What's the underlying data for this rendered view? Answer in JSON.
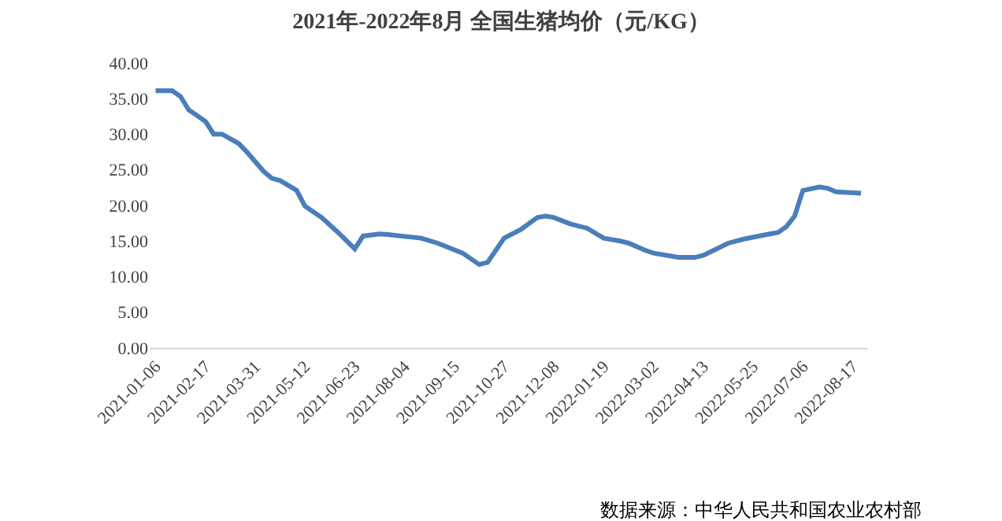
{
  "chart_data": {
    "type": "line",
    "title": "2021年-2022年8月 全国生猪均价（元/KG）",
    "annotations": [
      "数据来源：中华人民共和国农业农村部"
    ],
    "x": [
      "2021-01-06",
      "2021-01-20",
      "2021-01-27",
      "2021-02-03",
      "2021-02-17",
      "2021-02-24",
      "2021-03-03",
      "2021-03-17",
      "2021-03-24",
      "2021-04-07",
      "2021-04-14",
      "2021-04-21",
      "2021-05-05",
      "2021-05-12",
      "2021-05-26",
      "2021-06-09",
      "2021-06-23",
      "2021-06-30",
      "2021-07-14",
      "2021-07-21",
      "2021-08-18",
      "2021-09-01",
      "2021-09-22",
      "2021-10-06",
      "2021-10-13",
      "2021-10-27",
      "2021-11-10",
      "2021-11-24",
      "2021-12-01",
      "2021-12-08",
      "2021-12-22",
      "2022-01-05",
      "2022-01-19",
      "2022-02-02",
      "2022-02-09",
      "2022-02-23",
      "2022-03-02",
      "2022-03-23",
      "2022-04-06",
      "2022-04-13",
      "2022-05-04",
      "2022-05-18",
      "2022-06-08",
      "2022-06-15",
      "2022-06-22",
      "2022-06-29",
      "2022-07-06",
      "2022-07-20",
      "2022-07-27",
      "2022-08-03",
      "2022-08-24"
    ],
    "series": [
      {
        "color": "#4a7ebb",
        "values": [
          36.1,
          36.1,
          35.3,
          33.4,
          31.8,
          30.0,
          30.0,
          28.7,
          27.5,
          24.8,
          23.8,
          23.5,
          22.1,
          19.9,
          18.3,
          16.2,
          13.9,
          15.7,
          16.0,
          15.9,
          15.4,
          14.7,
          13.3,
          11.7,
          12.0,
          15.4,
          16.6,
          18.3,
          18.5,
          18.3,
          17.4,
          16.8,
          15.4,
          15.0,
          14.7,
          13.7,
          13.3,
          12.7,
          12.7,
          13.0,
          14.7,
          15.3,
          16.0,
          16.2,
          17.0,
          18.5,
          22.1,
          22.6,
          22.4,
          21.9,
          21.7
        ]
      }
    ],
    "xlim": [
      "2021-01-01",
      "2022-08-30"
    ],
    "xticks": [
      {
        "value": "2021-01-06",
        "label": "2021-01-06"
      },
      {
        "value": "2021-02-17",
        "label": "2021-02-17"
      },
      {
        "value": "2021-03-31",
        "label": "2021-03-31"
      },
      {
        "value": "2021-05-12",
        "label": "2021-05-12"
      },
      {
        "value": "2021-06-23",
        "label": "2021-06-23"
      },
      {
        "value": "2021-08-04",
        "label": "2021-08-04"
      },
      {
        "value": "2021-09-15",
        "label": "2021-09-15"
      },
      {
        "value": "2021-10-27",
        "label": "2021-10-27"
      },
      {
        "value": "2021-12-08",
        "label": "2021-12-08"
      },
      {
        "value": "2022-01-19",
        "label": "2022-01-19"
      },
      {
        "value": "2022-03-02",
        "label": "2022-03-02"
      },
      {
        "value": "2022-04-13",
        "label": "2022-04-13"
      },
      {
        "value": "2022-05-25",
        "label": "2022-05-25"
      },
      {
        "value": "2022-07-06",
        "label": "2022-07-06"
      },
      {
        "value": "2022-08-17",
        "label": "2022-08-17"
      }
    ],
    "ylim": [
      0,
      40
    ],
    "yticks": [
      {
        "value": 0,
        "label": "0.00"
      },
      {
        "value": 5,
        "label": "5.00"
      },
      {
        "value": 10,
        "label": "10.00"
      },
      {
        "value": 15,
        "label": "15.00"
      },
      {
        "value": 20,
        "label": "20.00"
      },
      {
        "value": 25,
        "label": "25.00"
      },
      {
        "value": 30,
        "label": "30.00"
      },
      {
        "value": 35,
        "label": "35.00"
      },
      {
        "value": 40,
        "label": "40.00"
      }
    ],
    "grid": false,
    "marker": "none",
    "line_style": "solid"
  }
}
